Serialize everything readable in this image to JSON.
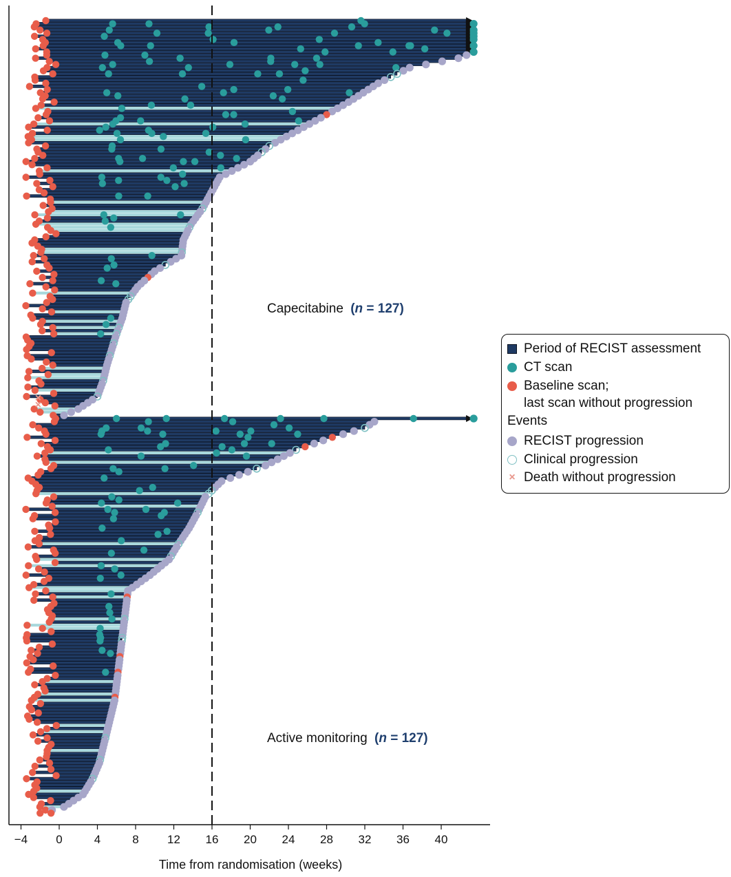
{
  "chart_data": {
    "type": "swimmer",
    "xlabel": "Time from randomisation (weeks)",
    "xlim": [
      -4.6,
      45
    ],
    "x_ticks": [
      -4,
      0,
      4,
      8,
      12,
      16,
      20,
      24,
      28,
      32,
      36,
      40
    ],
    "x_tick_labels": [
      "−4",
      "0",
      "4",
      "8",
      "12",
      "16",
      "20",
      "24",
      "28",
      "32",
      "36",
      "40"
    ],
    "reference_line_x": 16,
    "colors": {
      "period": "#1f3a63",
      "ct_scan": "#2a9d9c",
      "baseline": "#e85d4a",
      "recist": "#a7a6c9",
      "clinical": "#7fc0c3",
      "death": "#e8978c",
      "light_band": "#a8d8dc"
    },
    "groups": [
      {
        "name": "Capecitabine",
        "n_label": "n",
        "n_eq": " = 127)",
        "n_open": "(",
        "n": 127,
        "row_range_top": 1,
        "row_range_bottom": 127,
        "follow_up_weeks_profile": [
          [
            0,
            43.5
          ],
          [
            5,
            43.5
          ],
          [
            10,
            43.5
          ],
          [
            12,
            41.8
          ],
          [
            15,
            36.7
          ],
          [
            20,
            33.4
          ],
          [
            26,
            30.3
          ],
          [
            30,
            28
          ],
          [
            35,
            25
          ],
          [
            40,
            22
          ],
          [
            45,
            20
          ],
          [
            50,
            16.8
          ],
          [
            55,
            15.9
          ],
          [
            60,
            15
          ],
          [
            65,
            13.8
          ],
          [
            70,
            13
          ],
          [
            75,
            12.8
          ],
          [
            80,
            10
          ],
          [
            85,
            8.2
          ],
          [
            90,
            7
          ],
          [
            95,
            6.6
          ],
          [
            100,
            6
          ],
          [
            105,
            5.5
          ],
          [
            110,
            5
          ],
          [
            115,
            4.6
          ],
          [
            120,
            4
          ],
          [
            124,
            2
          ],
          [
            126,
            0.5
          ]
        ],
        "annotation": "Capecitabine (n = 127)"
      },
      {
        "name": "Active monitoring",
        "n_label": "n",
        "n_eq": " = 127)",
        "n_open": "(",
        "n": 127,
        "follow_up_weeks_profile": [
          [
            0,
            43.5
          ],
          [
            1,
            33
          ],
          [
            3,
            32
          ],
          [
            6,
            28.6
          ],
          [
            10,
            24.8
          ],
          [
            15,
            21.6
          ],
          [
            20,
            17
          ],
          [
            25,
            15.3
          ],
          [
            30,
            14.5
          ],
          [
            35,
            13.6
          ],
          [
            40,
            12.5
          ],
          [
            45,
            11.5
          ],
          [
            50,
            9.5
          ],
          [
            55,
            7.2
          ],
          [
            60,
            7
          ],
          [
            70,
            6.6
          ],
          [
            80,
            6.2
          ],
          [
            90,
            5.8
          ],
          [
            100,
            5
          ],
          [
            110,
            4.2
          ],
          [
            115,
            3.5
          ],
          [
            120,
            2.5
          ],
          [
            124,
            0.5
          ],
          [
            126,
            -2
          ]
        ],
        "annotation": "Active monitoring (n = 127)"
      }
    ]
  },
  "legend": {
    "items": [
      {
        "label": "Period of RECIST assessment",
        "symbol": "square",
        "color": "#1f3a63"
      },
      {
        "label": "CT scan",
        "symbol": "circle",
        "color": "#2a9d9c"
      },
      {
        "label": "Baseline scan;",
        "symbol": "circle",
        "color": "#e85d4a"
      },
      {
        "label": "last scan without progression",
        "symbol": "none"
      },
      {
        "label": "Events",
        "symbol": "header"
      },
      {
        "label": "RECIST progression",
        "symbol": "circle",
        "color": "#a7a6c9"
      },
      {
        "label": "Clinical progression",
        "symbol": "open-circle",
        "color": "#7fc0c3"
      },
      {
        "label": "Death without progression",
        "symbol": "cross",
        "color": "#e8978c"
      }
    ]
  }
}
